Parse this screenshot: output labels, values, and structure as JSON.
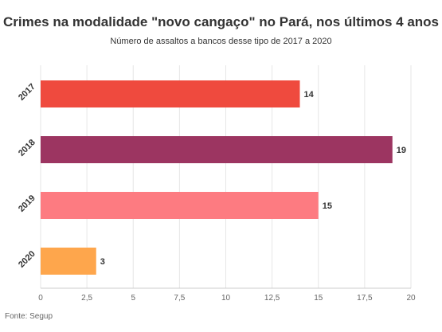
{
  "chart_data": {
    "type": "bar",
    "orientation": "horizontal",
    "title": "Crimes na modalidade \"novo cangaço\" no Pará, nos últimos 4 anos",
    "subtitle": "Número de assaltos a bancos desse tipo de 2017 a 2020",
    "categories": [
      "2017",
      "2018",
      "2019",
      "2020"
    ],
    "values": [
      14,
      19,
      15,
      3
    ],
    "colors": [
      "#ef4a3e",
      "#9c3561",
      "#fd7b81",
      "#fea64c"
    ],
    "x_ticks": [
      0,
      2.5,
      5,
      7.5,
      10,
      12.5,
      15,
      17.5,
      20
    ],
    "x_tick_labels": [
      "0",
      "2,5",
      "5",
      "7,5",
      "10",
      "12,5",
      "15",
      "17,5",
      "20"
    ],
    "xlim": [
      0,
      20
    ],
    "grid": "vertical",
    "source": "Fonte: Segup"
  }
}
